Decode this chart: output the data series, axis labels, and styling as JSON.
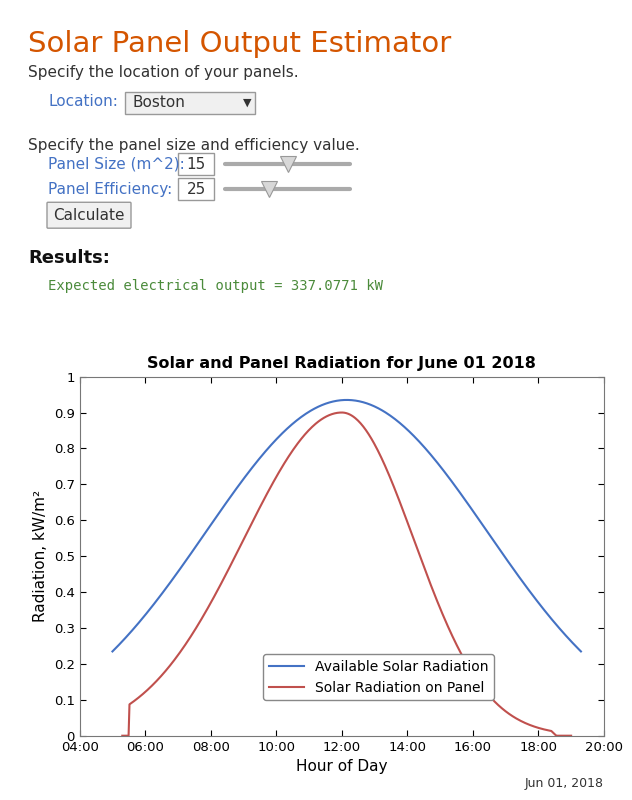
{
  "title": "Solar Panel Output Estimator",
  "title_color": "#D45500",
  "subtitle1": "Specify the location of your panels.",
  "location_label": "Location:",
  "location_value": "Boston",
  "subtitle2": "Specify the panel size and efficiency value.",
  "panel_size_label": "Panel Size (m^2):",
  "panel_size_value": "15",
  "panel_eff_label": "Panel Efficiency:",
  "panel_eff_value": "25",
  "button_label": "Calculate",
  "results_label": "Results:",
  "output_text": "Expected electrical output = 337.0771 kW",
  "output_color": "#4B8B3B",
  "chart_title": "Solar and Panel Radiation for June 01 2018",
  "xlabel": "Hour of Day",
  "ylabel": "Radiation, kW/m²",
  "date_label": "Jun 01, 2018",
  "ylim": [
    0,
    1
  ],
  "yticks": [
    0,
    0.1,
    0.2,
    0.3,
    0.4,
    0.5,
    0.6,
    0.7,
    0.8,
    0.9,
    1
  ],
  "xtick_labels": [
    "04:00",
    "06:00",
    "08:00",
    "10:00",
    "12:00",
    "14:00",
    "16:00",
    "18:00",
    "20:00"
  ],
  "line1_color": "#4472C4",
  "line2_color": "#C0504D",
  "legend_entries": [
    "Available Solar Radiation",
    "Solar Radiation on Panel"
  ],
  "bg_color": "#FFFFFF",
  "text_dark": "#333333",
  "label_color_ui": "#4472C4",
  "slider_color": "#AAAAAA",
  "thumb_color": "#D8D8D8",
  "box_color": "#F0F0F0",
  "border_color": "#999999"
}
